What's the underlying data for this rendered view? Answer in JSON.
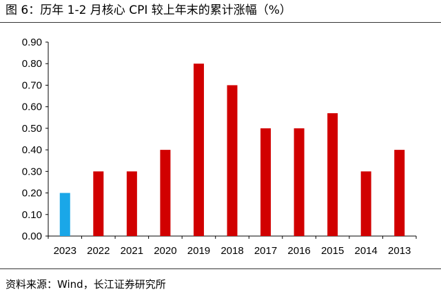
{
  "figure": {
    "title": "图 6：历年 1-2 月核心 CPI 较上年末的累计涨幅（%）",
    "source": "资料来源：Wind，长江证券研究所"
  },
  "colors": {
    "highlight": "#1aa7e8",
    "bar": "#d10000",
    "axis": "#000000",
    "rule": "#333333"
  },
  "chart_data": {
    "type": "bar",
    "categories": [
      "2023",
      "2022",
      "2021",
      "2020",
      "2019",
      "2018",
      "2017",
      "2016",
      "2015",
      "2014",
      "2013"
    ],
    "values": [
      0.2,
      0.3,
      0.3,
      0.4,
      0.8,
      0.7,
      0.5,
      0.5,
      0.57,
      0.3,
      0.4
    ],
    "highlight_index": 0,
    "ylim": [
      0,
      0.9
    ],
    "yticks": [
      "0.00",
      "0.10",
      "0.20",
      "0.30",
      "0.40",
      "0.50",
      "0.60",
      "0.70",
      "0.80",
      "0.90"
    ],
    "grid": false,
    "legend": "none"
  }
}
